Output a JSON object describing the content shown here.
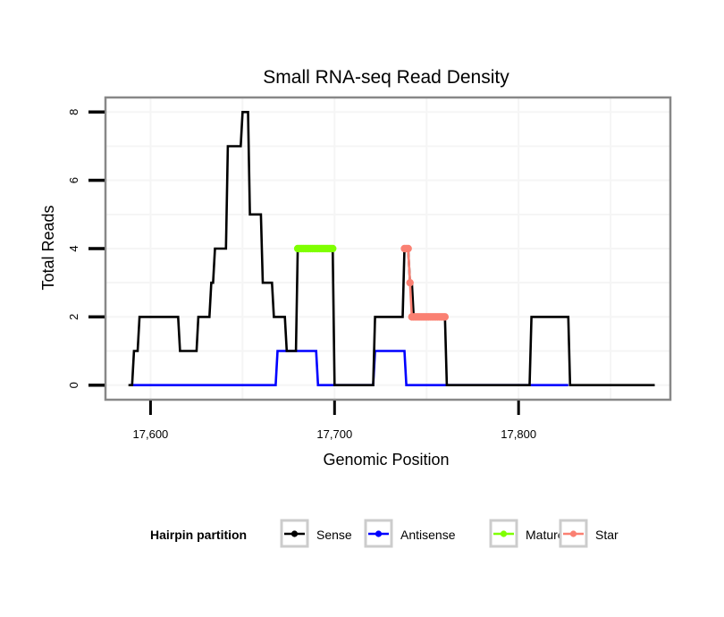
{
  "chart_data": {
    "type": "line",
    "title": "Small RNA-seq Read Density",
    "xlabel": "Genomic Position",
    "ylabel": "Total Reads",
    "xlim": [
      17576,
      17882
    ],
    "ylim": [
      -0.4,
      8.4
    ],
    "xticks": [
      17600,
      17700,
      17800
    ],
    "xtick_labels": [
      "17,600",
      "17,700",
      "17,800"
    ],
    "yticks": [
      0,
      2,
      4,
      6,
      8
    ],
    "ytick_labels": [
      "0",
      "2",
      "4",
      "6",
      "8"
    ],
    "grid": true,
    "legend": {
      "title": "Hairpin partition",
      "position": "bottom",
      "entries": [
        {
          "name": "Sense",
          "color": "#000000"
        },
        {
          "name": "Antisense",
          "color": "#0000FF"
        },
        {
          "name": "Mature",
          "color": "#7FFF00"
        },
        {
          "name": "Star",
          "color": "#FA8072"
        }
      ]
    },
    "series": [
      {
        "name": "Sense",
        "color": "#000000",
        "style": "line",
        "x": [
          17588,
          17590,
          17591,
          17593,
          17594,
          17615,
          17616,
          17625,
          17626,
          17632,
          17633,
          17634,
          17635,
          17641,
          17642,
          17649,
          17650,
          17653,
          17654,
          17660,
          17661,
          17666,
          17667,
          17673,
          17674,
          17679,
          17680,
          17699,
          17700,
          17721,
          17722,
          17737,
          17738,
          17740,
          17741,
          17742,
          17743,
          17760,
          17761,
          17806,
          17807,
          17827,
          17828,
          17874
        ],
        "y": [
          0,
          0,
          1,
          1,
          2,
          2,
          1,
          1,
          2,
          2,
          3,
          3,
          4,
          4,
          7,
          7,
          8,
          8,
          5,
          5,
          3,
          3,
          2,
          2,
          1,
          1,
          4,
          4,
          0,
          0,
          2,
          2,
          4,
          4,
          3,
          3,
          2,
          2,
          0,
          0,
          2,
          2,
          0,
          0
        ]
      },
      {
        "name": "Antisense",
        "color": "#0000FF",
        "style": "line",
        "x": [
          17589,
          17668,
          17669,
          17690,
          17691,
          17721,
          17722,
          17738,
          17739,
          17806,
          17807,
          17827
        ],
        "y": [
          0,
          0,
          1,
          1,
          0,
          0,
          1,
          1,
          0,
          0,
          0,
          0
        ]
      },
      {
        "name": "Mature",
        "color": "#7FFF00",
        "style": "points",
        "x": [
          17680,
          17681,
          17682,
          17683,
          17684,
          17685,
          17686,
          17687,
          17688,
          17689,
          17690,
          17691,
          17692,
          17693,
          17694,
          17695,
          17696,
          17697,
          17698,
          17699
        ],
        "y": [
          4,
          4,
          4,
          4,
          4,
          4,
          4,
          4,
          4,
          4,
          4,
          4,
          4,
          4,
          4,
          4,
          4,
          4,
          4,
          4
        ]
      },
      {
        "name": "Star",
        "color": "#FA8072",
        "style": "points",
        "x": [
          17738,
          17739,
          17740,
          17741,
          17742,
          17743,
          17744,
          17745,
          17746,
          17747,
          17748,
          17749,
          17750,
          17751,
          17752,
          17753,
          17754,
          17755,
          17756,
          17757,
          17758,
          17759,
          17760
        ],
        "y": [
          4,
          4,
          4,
          3,
          2,
          2,
          2,
          2,
          2,
          2,
          2,
          2,
          2,
          2,
          2,
          2,
          2,
          2,
          2,
          2,
          2,
          2,
          2
        ]
      }
    ]
  }
}
